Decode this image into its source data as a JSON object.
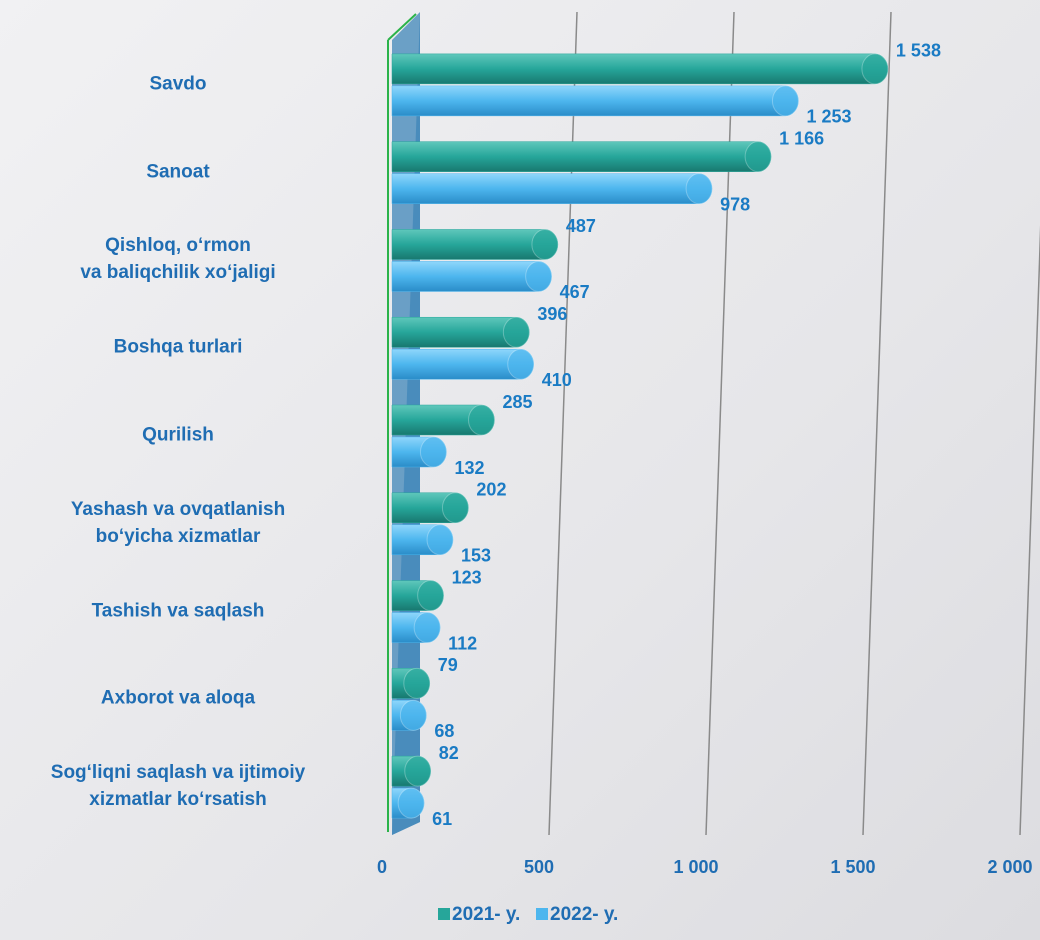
{
  "chart_data": {
    "type": "bar3d_horizontal",
    "categories": [
      "Savdo",
      "Sanoat",
      "Qishloq, o‘rmon\nva baliqchilik xo‘jaligi",
      "Boshqa turlari",
      "Qurilish",
      "Yashash va ovqatlanish\nbo‘yicha xizmatlar",
      "Tashish va saqlash",
      "Axborot va aloqa",
      "Sog‘liqni saqlash va ijtimoiy\nxizmatlar ko‘rsatish"
    ],
    "series": [
      {
        "name": "2021- y.",
        "color": "#26a69a",
        "values": [
          1538,
          1166,
          487,
          396,
          285,
          202,
          123,
          79,
          82
        ],
        "value_labels": [
          "1 538",
          "1 166",
          "487",
          "396",
          "285",
          "202",
          "123",
          "79",
          "82"
        ]
      },
      {
        "name": "2022- y.",
        "color": "#4db6ee",
        "values": [
          1253,
          978,
          467,
          410,
          132,
          153,
          112,
          68,
          61
        ],
        "value_labels": [
          "1 253",
          "978",
          "467",
          "410",
          "132",
          "153",
          "112",
          "68",
          "61"
        ]
      }
    ],
    "xlim": [
      0,
      2000
    ],
    "xticks": [
      0,
      500,
      {
        "value": 1000,
        "label": "1 000"
      },
      {
        "value": 1500,
        "label": "1 500"
      },
      {
        "value": 2000,
        "label": "2 000"
      }
    ],
    "grid": true,
    "legend": "bottom"
  }
}
